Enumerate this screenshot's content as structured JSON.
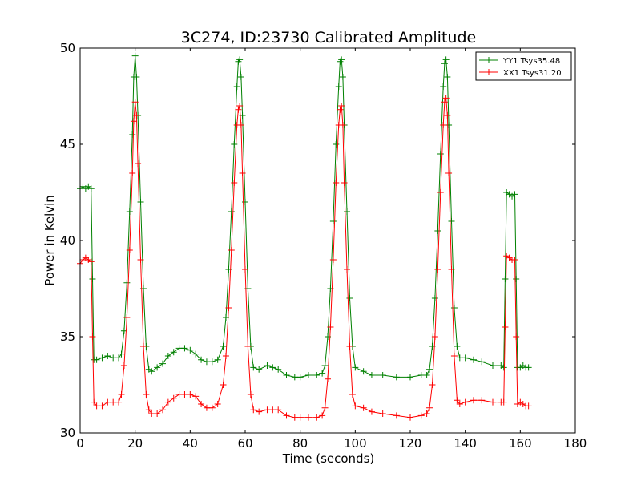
{
  "chart_data": {
    "type": "line",
    "title": "3C274, ID:23730 Calibrated Amplitude",
    "xlabel": "Time (seconds)",
    "ylabel": "Power in Kelvin",
    "xlim": [
      0,
      180
    ],
    "ylim": [
      30,
      50
    ],
    "xticks": [
      0,
      20,
      40,
      60,
      80,
      100,
      120,
      140,
      160,
      180
    ],
    "yticks": [
      30,
      35,
      40,
      45,
      50
    ],
    "grid": false,
    "legend_position": "top-right",
    "series": [
      {
        "name": "YY1 Tsys35.48",
        "color": "#008000",
        "marker": "plus",
        "x": [
          0,
          1,
          2,
          3,
          4,
          4.5,
          5,
          6,
          8,
          10,
          12,
          14,
          15,
          16,
          17,
          18,
          19,
          19.5,
          20,
          20.5,
          21,
          22,
          23,
          24,
          25,
          26,
          28,
          30,
          32,
          34,
          36,
          38,
          40,
          42,
          44,
          46,
          48,
          50,
          52,
          53,
          54,
          55,
          56,
          57,
          57.5,
          58,
          58.5,
          59,
          60,
          61,
          62,
          63,
          65,
          68,
          70,
          72,
          75,
          78,
          80,
          83,
          86,
          88,
          89,
          90,
          91,
          92,
          93,
          94,
          94.5,
          95,
          95.5,
          96,
          97,
          98,
          99,
          100,
          103,
          106,
          110,
          115,
          120,
          124,
          126,
          127,
          128,
          129,
          130,
          131,
          132,
          132.5,
          133,
          133.5,
          134,
          135,
          136,
          137,
          138,
          140,
          143,
          146,
          150,
          153,
          154,
          154.5,
          155,
          156,
          157,
          158,
          158.5,
          159,
          160,
          161,
          162,
          163
        ],
        "y": [
          42.7,
          42.8,
          42.7,
          42.8,
          42.7,
          38,
          33.8,
          33.8,
          33.9,
          34.0,
          33.9,
          33.9,
          34.1,
          35.3,
          37.8,
          41.5,
          45.5,
          48.5,
          49.6,
          48.5,
          46.5,
          42.0,
          37.5,
          34.5,
          33.3,
          33.2,
          33.4,
          33.6,
          34.0,
          34.2,
          34.4,
          34.4,
          34.3,
          34.1,
          33.8,
          33.7,
          33.7,
          33.8,
          34.5,
          36.0,
          38.5,
          41.5,
          45.0,
          48.0,
          49.3,
          49.4,
          48.5,
          46.5,
          42.0,
          37.5,
          34.5,
          33.4,
          33.3,
          33.5,
          33.4,
          33.3,
          33.0,
          32.9,
          32.9,
          33.0,
          33.0,
          33.1,
          33.5,
          35.0,
          37.5,
          41.0,
          45.0,
          48.0,
          49.3,
          49.4,
          48.5,
          46.0,
          41.5,
          37.0,
          34.5,
          33.4,
          33.2,
          33.0,
          33.0,
          32.9,
          32.9,
          33.0,
          33.0,
          33.3,
          34.5,
          37.0,
          40.5,
          44.5,
          48.0,
          49.2,
          49.4,
          48.5,
          46.0,
          41.0,
          36.5,
          34.5,
          33.9,
          33.9,
          33.8,
          33.7,
          33.5,
          33.5,
          33.4,
          38.0,
          42.5,
          42.4,
          42.3,
          42.4,
          38.0,
          33.4,
          33.4,
          33.5,
          33.4,
          33.4
        ]
      },
      {
        "name": "XX1 Tsys31.20",
        "color": "#ff0000",
        "marker": "plus",
        "x": [
          0,
          1,
          2,
          3,
          4,
          4.5,
          5,
          6,
          8,
          10,
          12,
          14,
          15,
          16,
          17,
          18,
          19,
          19.5,
          20,
          20.5,
          21,
          22,
          23,
          24,
          25,
          26,
          28,
          30,
          32,
          34,
          36,
          38,
          40,
          42,
          44,
          46,
          48,
          50,
          52,
          53,
          54,
          55,
          56,
          57,
          57.5,
          58,
          58.5,
          59,
          60,
          61,
          62,
          63,
          65,
          68,
          70,
          72,
          75,
          78,
          80,
          83,
          86,
          88,
          89,
          90,
          91,
          92,
          93,
          94,
          94.5,
          95,
          95.5,
          96,
          97,
          98,
          99,
          100,
          103,
          106,
          110,
          115,
          120,
          124,
          126,
          127,
          128,
          129,
          130,
          131,
          132,
          132.5,
          133,
          133.5,
          134,
          135,
          136,
          137,
          138,
          140,
          143,
          146,
          150,
          153,
          154,
          154.5,
          155,
          156,
          157,
          158,
          158.5,
          159,
          160,
          161,
          162,
          163
        ],
        "y": [
          38.8,
          39.0,
          39.1,
          39.0,
          38.9,
          35.0,
          31.6,
          31.4,
          31.4,
          31.6,
          31.6,
          31.6,
          32.0,
          33.5,
          36.0,
          39.5,
          43.5,
          46.2,
          47.2,
          46.5,
          44.0,
          39.0,
          34.5,
          32.0,
          31.2,
          31.0,
          31.0,
          31.2,
          31.6,
          31.8,
          32.0,
          32.0,
          32.0,
          31.9,
          31.5,
          31.3,
          31.3,
          31.5,
          32.5,
          34.0,
          36.5,
          39.5,
          43.0,
          46.0,
          46.8,
          47.0,
          46.0,
          43.5,
          38.5,
          34.5,
          32.0,
          31.2,
          31.1,
          31.2,
          31.2,
          31.2,
          30.9,
          30.8,
          30.8,
          30.8,
          30.8,
          30.9,
          31.3,
          32.8,
          35.5,
          39.0,
          43.0,
          46.0,
          46.8,
          47.0,
          46.0,
          43.0,
          38.5,
          34.5,
          32.0,
          31.4,
          31.3,
          31.1,
          31.0,
          30.9,
          30.8,
          30.9,
          31.0,
          31.3,
          32.5,
          35.0,
          38.5,
          42.5,
          46.0,
          47.2,
          47.4,
          46.5,
          43.5,
          38.5,
          34.0,
          31.7,
          31.5,
          31.6,
          31.7,
          31.7,
          31.6,
          31.6,
          31.6,
          35.5,
          39.2,
          39.1,
          39.0,
          39.0,
          35.0,
          31.5,
          31.6,
          31.5,
          31.4,
          31.4
        ]
      }
    ]
  }
}
